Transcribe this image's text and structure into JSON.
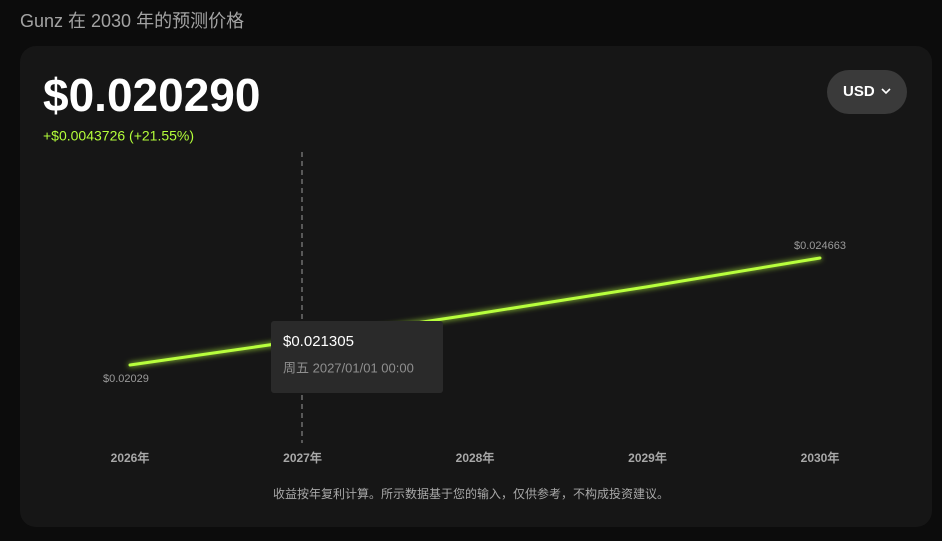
{
  "header": {
    "title": "Gunz 在 2030 年的预测价格",
    "price": "$0.020290",
    "change": "+$0.0043726 (+21.55%)",
    "currency_button": "USD"
  },
  "chart_data": {
    "type": "line",
    "categories": [
      "2026年",
      "2027年",
      "2028年",
      "2029年",
      "2030年"
    ],
    "values": [
      0.02029,
      0.021305,
      0.02237,
      0.023489,
      0.024663
    ],
    "value_labels": [
      "$0.02029",
      "$0.021305",
      null,
      null,
      "$0.024663"
    ],
    "color": "#b8ff3c"
  },
  "tooltip": {
    "date": "周五 2027/01/01 00:00"
  },
  "footnote": "收益按年复利计算。所示数据基于您的输入，仅供参考，不构成投资建议。"
}
